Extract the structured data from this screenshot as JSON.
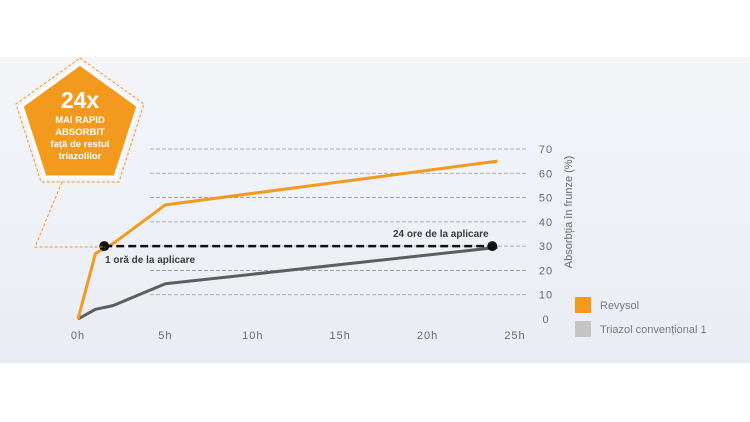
{
  "badge": {
    "big": "24x",
    "lines": [
      "MAI RAPID",
      "ABSORBIT",
      "față de restul",
      "triazolilor"
    ]
  },
  "colors": {
    "revysol": "#f39a1e",
    "conventional": "#5d5d5d",
    "grid": "#9a9a9a",
    "badge": "#f39a1e",
    "legend_conventional": "#c4c4c4"
  },
  "chart_data": {
    "type": "line",
    "xlabel": "",
    "ylabel": "Absorbția în frunze (%)",
    "xlim": [
      0,
      25
    ],
    "ylim": [
      0,
      70
    ],
    "x_ticks": [
      0,
      5,
      10,
      15,
      20,
      25
    ],
    "x_tick_labels": [
      "0h",
      "5h",
      "10h",
      "15h",
      "20h",
      "25h"
    ],
    "y_ticks": [
      0,
      10,
      20,
      30,
      40,
      50,
      60,
      70
    ],
    "y_tick_labels": [
      "0",
      "10",
      "20",
      "30",
      "40",
      "50",
      "60",
      "70"
    ],
    "grid": true,
    "series": [
      {
        "name": "Revysol",
        "color": "#f39a1e",
        "points": [
          [
            0,
            0
          ],
          [
            1,
            27
          ],
          [
            2,
            31
          ],
          [
            5,
            47
          ],
          [
            24,
            65
          ]
        ]
      },
      {
        "name": "Triazol convențional 1",
        "color": "#5d5d5d",
        "points": [
          [
            0,
            0
          ],
          [
            1,
            4
          ],
          [
            2,
            5.5
          ],
          [
            5,
            14.5
          ],
          [
            24,
            29.5
          ]
        ]
      }
    ],
    "reference_line": {
      "y": 30,
      "x_from": 1.5,
      "x_to": 23.7
    },
    "annotations": [
      {
        "text": "1 oră de la aplicare",
        "x": 1.5,
        "y": 30
      },
      {
        "text": "24 ore de la aplicare",
        "x": 23.7,
        "y": 30
      }
    ]
  }
}
